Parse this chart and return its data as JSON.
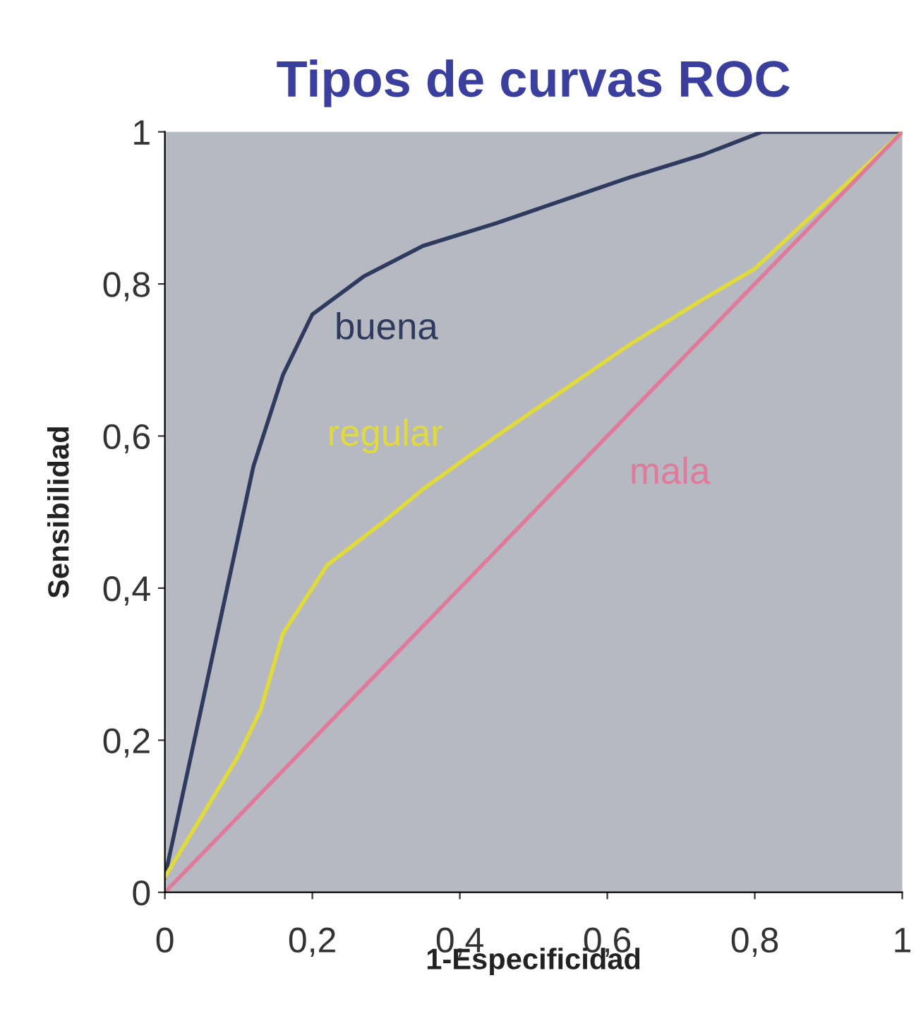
{
  "chart_data": {
    "type": "line",
    "title": "Tipos de curvas ROC",
    "xlabel": "1-Especificidad",
    "ylabel": "Sensibilidad",
    "xlim": [
      0,
      1
    ],
    "ylim": [
      0,
      1
    ],
    "xticks": [
      0,
      {
        "value": 0.2,
        "label": "0,2"
      },
      {
        "value": 0.4,
        "label": "0,4"
      },
      {
        "value": 0.6,
        "label": "0,6"
      },
      {
        "value": 0.8,
        "label": "0,8"
      },
      1
    ],
    "yticks": [
      0,
      {
        "value": 0.2,
        "label": "0,2"
      },
      {
        "value": 0.4,
        "label": "0,4"
      },
      {
        "value": 0.6,
        "label": "0,6"
      },
      {
        "value": 0.8,
        "label": "0,8"
      },
      1
    ],
    "grid": false,
    "legend": false,
    "marker": "none",
    "line_style": "solid",
    "series": [
      {
        "name": "buena",
        "color": "#2e3a5e",
        "x": [
          0,
          0.04,
          0.08,
          0.12,
          0.16,
          0.2,
          0.27,
          0.35,
          0.45,
          0.54,
          0.63,
          0.73,
          0.81,
          0.9,
          1
        ],
        "values": [
          0.02,
          0.2,
          0.38,
          0.56,
          0.68,
          0.76,
          0.81,
          0.85,
          0.88,
          0.91,
          0.94,
          0.97,
          1,
          1,
          1
        ]
      },
      {
        "name": "regular",
        "color": "#e0da3a",
        "x": [
          0,
          0.05,
          0.1,
          0.13,
          0.16,
          0.22,
          0.3,
          0.35,
          0.45,
          0.54,
          0.63,
          0.73,
          0.8,
          0.9,
          1
        ],
        "values": [
          0.02,
          0.1,
          0.18,
          0.24,
          0.34,
          0.43,
          0.49,
          0.53,
          0.6,
          0.66,
          0.72,
          0.78,
          0.82,
          0.91,
          1
        ]
      },
      {
        "name": "mala",
        "color": "#e07a9a",
        "x": [
          0,
          1
        ],
        "values": [
          0,
          1
        ]
      }
    ]
  }
}
